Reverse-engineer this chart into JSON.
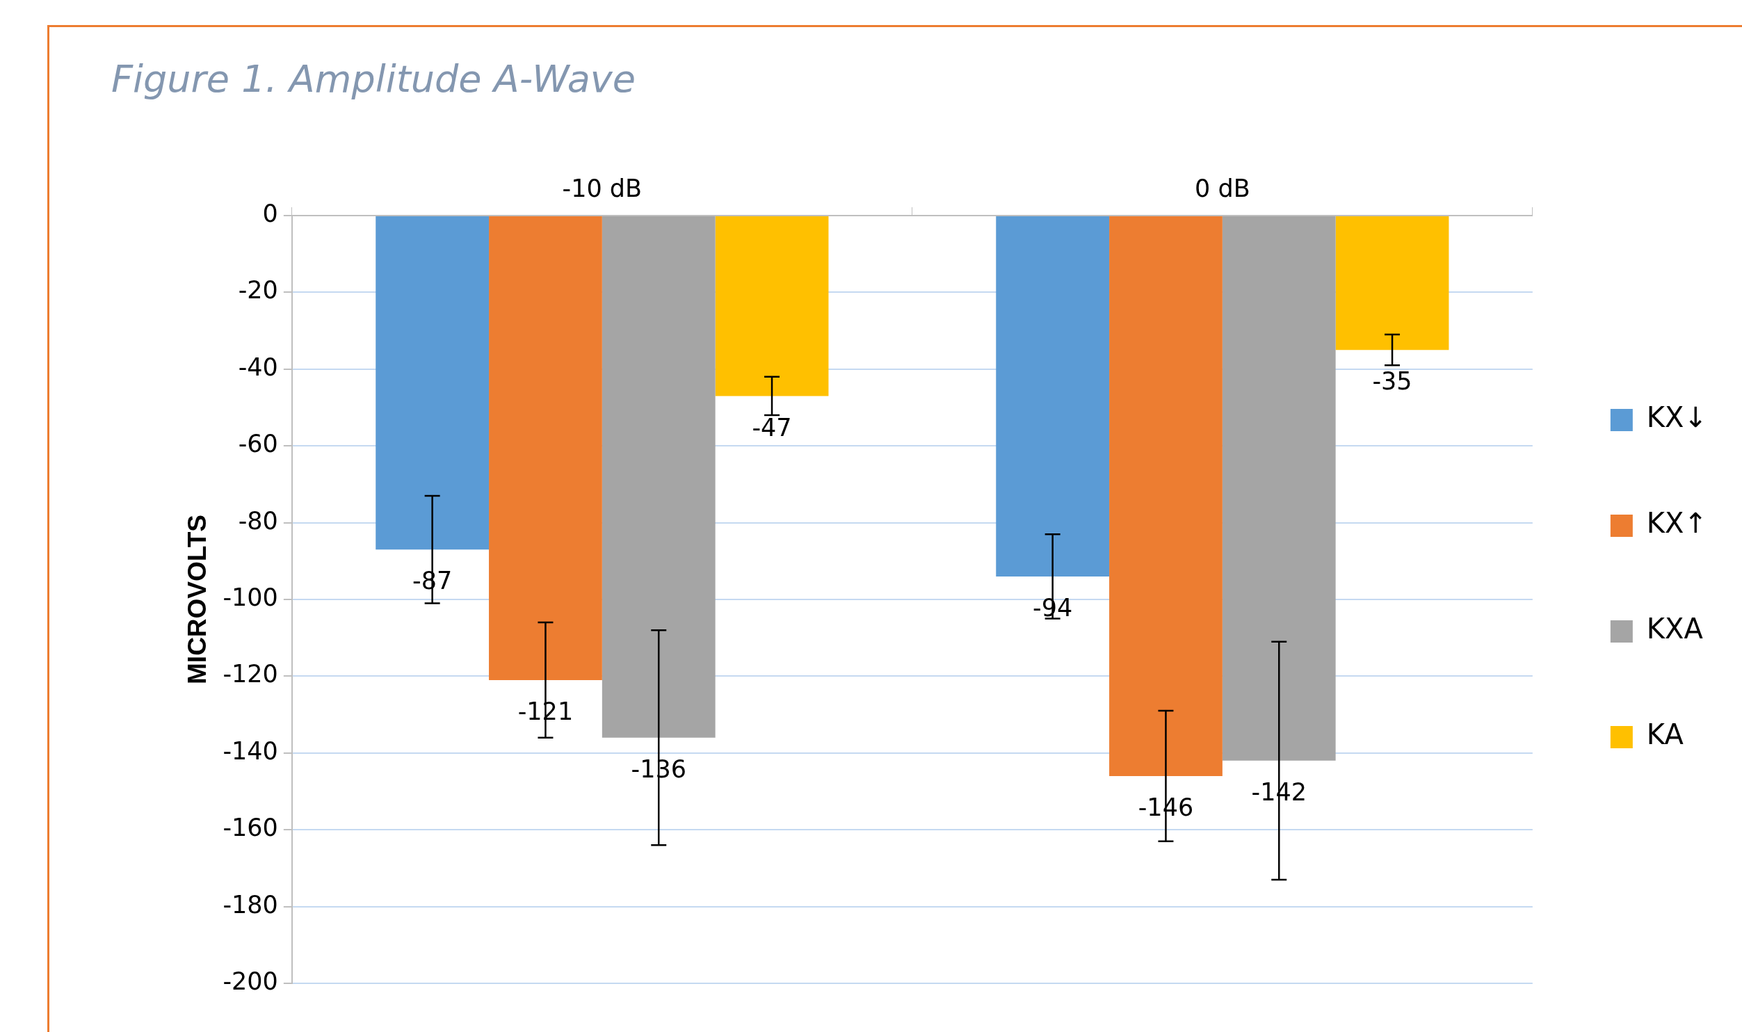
{
  "chart_data": {
    "type": "bar",
    "title": "Figure 1. Amplitude A-Wave",
    "ylabel": "MICROVOLTS",
    "categories": [
      "-10 dB",
      "0 dB"
    ],
    "series": [
      {
        "name": "KX↓",
        "color": "#5b9bd5",
        "values": [
          -87,
          -94
        ],
        "errors": [
          14,
          11
        ]
      },
      {
        "name": "KX↑",
        "color": "#ed7d31",
        "values": [
          -121,
          -146
        ],
        "errors": [
          15,
          17
        ]
      },
      {
        "name": "KXA",
        "color": "#a5a5a5",
        "values": [
          -136,
          -142
        ],
        "errors": [
          28,
          31
        ]
      },
      {
        "name": "KA",
        "color": "#ffc000",
        "values": [
          -47,
          -35
        ],
        "errors": [
          5,
          4
        ]
      }
    ],
    "ylim": [
      -200,
      0
    ],
    "yticks": [
      0,
      -20,
      -40,
      -60,
      -80,
      -100,
      -120,
      -140,
      -160,
      -180,
      -200
    ],
    "grid": "y",
    "legend": "right",
    "data_labels": true
  }
}
